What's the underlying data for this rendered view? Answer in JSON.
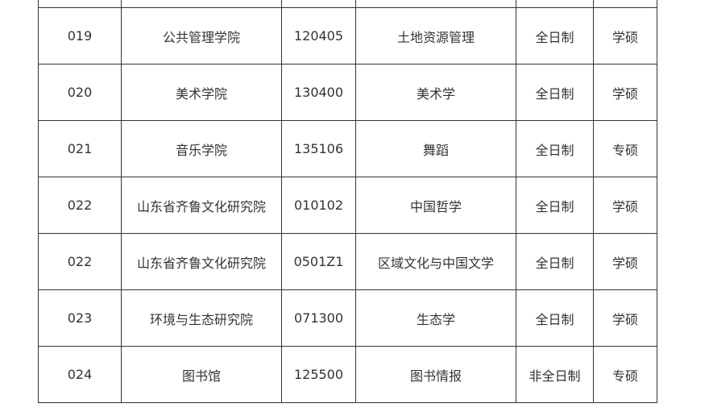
{
  "rows": [
    [
      "",
      "",
      "",
      "",
      "",
      ""
    ],
    [
      "019",
      "公共管理学院",
      "120405",
      "土地资源管理",
      "全日制",
      "学硕"
    ],
    [
      "020",
      "美术学院",
      "130400",
      "美术学",
      "全日制",
      "学硕"
    ],
    [
      "021",
      "音乐学院",
      "135106",
      "舞蹈",
      "全日制",
      "专硕"
    ],
    [
      "022",
      "山东省齐鲁文化研究院",
      "010102",
      "中国哲学",
      "全日制",
      "学硕"
    ],
    [
      "022",
      "山东省齐鲁文化研究院",
      "0501Z1",
      "区域文化与中国文学",
      "全日制",
      "学硕"
    ],
    [
      "023",
      "环境与生态研究院",
      "071300",
      "生态学",
      "全日制",
      "学硕"
    ],
    [
      "024",
      "图书馆",
      "125500",
      "图书情报",
      "非全日制",
      "专硕"
    ]
  ]
}
